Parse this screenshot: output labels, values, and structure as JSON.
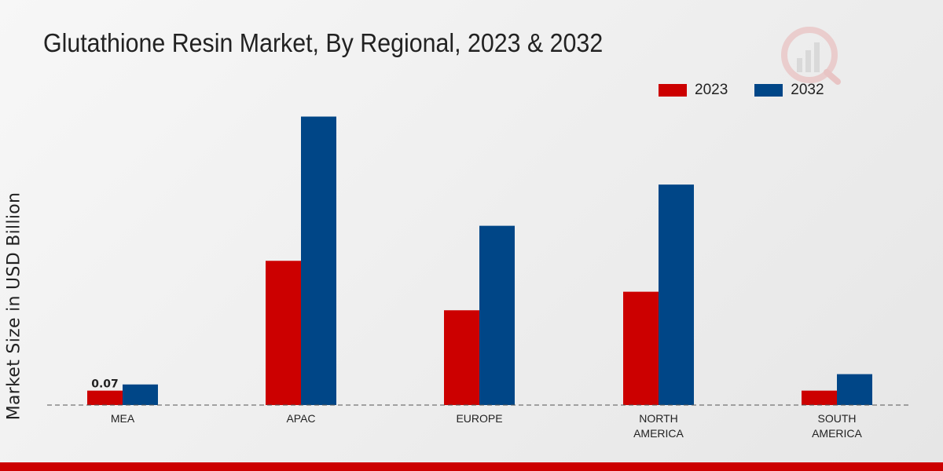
{
  "chart_data": {
    "type": "bar",
    "title": "Glutathione Resin Market, By Regional, 2023 & 2032",
    "xlabel": "",
    "ylabel": "Market Size in USD Billion",
    "categories": [
      "MEA",
      "APAC",
      "EUROPE",
      "NORTH AMERICA",
      "SOUTH AMERICA"
    ],
    "category_lines": [
      [
        "MEA"
      ],
      [
        "APAC"
      ],
      [
        "EUROPE"
      ],
      [
        "NORTH",
        "AMERICA"
      ],
      [
        "SOUTH",
        "AMERICA"
      ]
    ],
    "series": [
      {
        "name": "2023",
        "color": "#cc0000",
        "values": [
          0.07,
          0.7,
          0.46,
          0.55,
          0.07
        ]
      },
      {
        "name": "2032",
        "color": "#004687",
        "values": [
          0.1,
          1.4,
          0.87,
          1.07,
          0.15
        ]
      }
    ],
    "data_labels": [
      {
        "series": 0,
        "index": 0,
        "text": "0.07"
      }
    ],
    "ylim": [
      0,
      1.6
    ],
    "grid": false,
    "legend": "top-right"
  }
}
